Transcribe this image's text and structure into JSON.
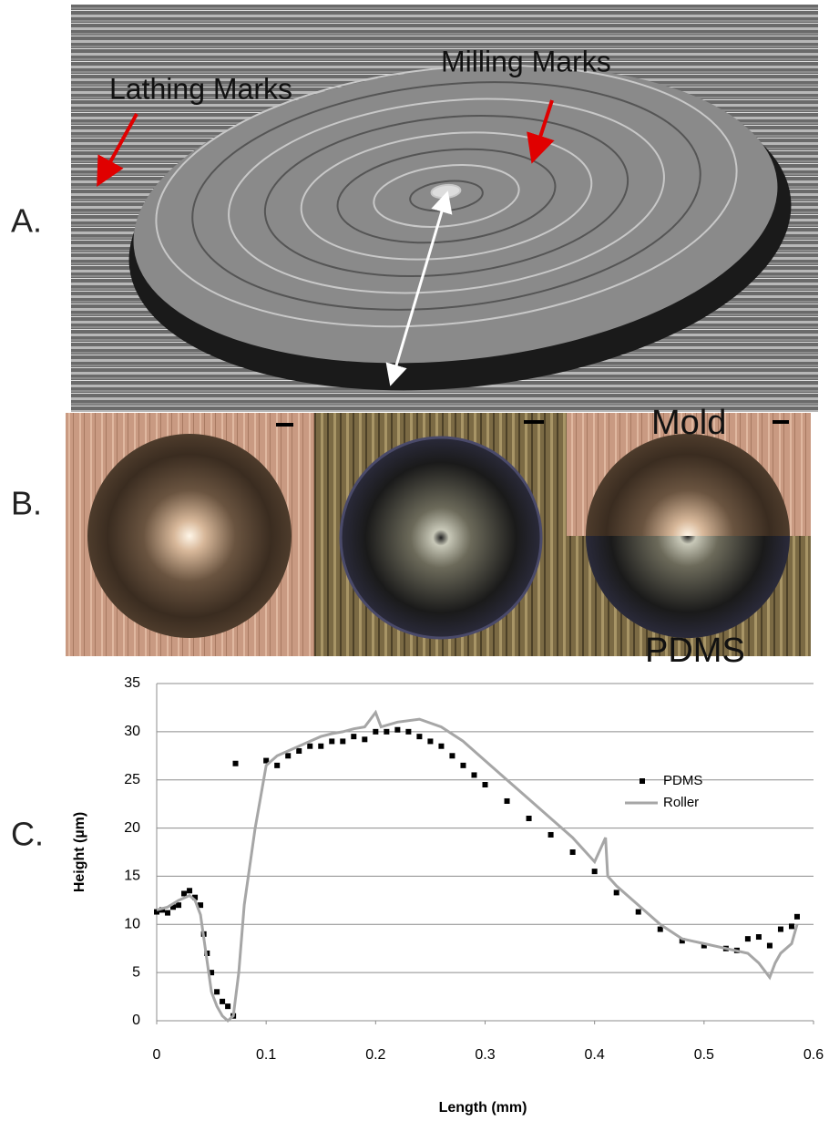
{
  "panels": {
    "a": {
      "label": "A.",
      "annotations": [
        "Lathing Marks",
        "Milling Marks"
      ]
    },
    "b": {
      "label": "B.",
      "annotations": [
        "Mold",
        "PDMS"
      ]
    },
    "c": {
      "label": "C."
    }
  },
  "chart_data": {
    "type": "line",
    "xlabel": "Length (mm)",
    "ylabel": "Height (µm)",
    "xlim": [
      0,
      0.6
    ],
    "xticks": [
      0,
      0.1,
      0.2,
      0.3,
      0.4,
      0.5,
      0.6
    ],
    "ylim": [
      0,
      35
    ],
    "yticks": [
      0,
      5,
      10,
      15,
      20,
      25,
      30,
      35
    ],
    "grid": true,
    "legend": "right",
    "series": [
      {
        "name": "PDMS",
        "type": "scatter",
        "marker": "square",
        "color": "#000000",
        "x": [
          0,
          0.005,
          0.01,
          0.015,
          0.02,
          0.025,
          0.03,
          0.035,
          0.04,
          0.043,
          0.046,
          0.05,
          0.055,
          0.06,
          0.065,
          0.07,
          0.072,
          0.1,
          0.11,
          0.12,
          0.13,
          0.14,
          0.15,
          0.16,
          0.17,
          0.18,
          0.19,
          0.2,
          0.21,
          0.22,
          0.23,
          0.24,
          0.25,
          0.26,
          0.27,
          0.28,
          0.29,
          0.3,
          0.32,
          0.34,
          0.36,
          0.38,
          0.4,
          0.42,
          0.44,
          0.46,
          0.48,
          0.5,
          0.52,
          0.53,
          0.54,
          0.55,
          0.56,
          0.57,
          0.58,
          0.585
        ],
        "values": [
          11.3,
          11.5,
          11.2,
          11.8,
          12,
          13.2,
          13.5,
          12.8,
          12,
          9,
          7,
          5,
          3,
          2,
          1.5,
          0.5,
          26.7,
          27,
          26.5,
          27.5,
          28,
          28.5,
          28.5,
          29,
          29,
          29.5,
          29.2,
          30,
          30,
          30.2,
          30,
          29.5,
          29,
          28.5,
          27.5,
          26.5,
          25.5,
          24.5,
          22.8,
          21,
          19.3,
          17.5,
          15.5,
          13.3,
          11.3,
          9.5,
          8.3,
          7.8,
          7.5,
          7.3,
          8.5,
          8.7,
          7.8,
          9.5,
          9.8,
          10.8
        ]
      },
      {
        "name": "Roller",
        "type": "line",
        "color": "#a6a6a6",
        "x": [
          0,
          0.01,
          0.02,
          0.03,
          0.035,
          0.04,
          0.045,
          0.05,
          0.055,
          0.06,
          0.065,
          0.07,
          0.075,
          0.08,
          0.09,
          0.1,
          0.11,
          0.12,
          0.13,
          0.14,
          0.15,
          0.16,
          0.17,
          0.18,
          0.19,
          0.2,
          0.205,
          0.22,
          0.24,
          0.26,
          0.28,
          0.3,
          0.32,
          0.34,
          0.36,
          0.38,
          0.4,
          0.41,
          0.412,
          0.42,
          0.44,
          0.46,
          0.48,
          0.5,
          0.52,
          0.54,
          0.55,
          0.56,
          0.565,
          0.57,
          0.58,
          0.585
        ],
        "values": [
          11.5,
          11.8,
          12.5,
          13,
          12.5,
          11,
          7,
          3,
          1.5,
          0.5,
          0,
          0.5,
          5,
          12,
          20,
          26.5,
          27.5,
          28,
          28.5,
          29,
          29.5,
          29.8,
          30,
          30.3,
          30.5,
          32,
          30.5,
          31,
          31.3,
          30.5,
          29,
          27,
          25,
          23,
          21,
          19,
          16.5,
          19,
          15,
          14,
          12,
          10,
          8.5,
          8,
          7.5,
          7,
          6,
          4.5,
          6,
          7,
          8,
          10
        ]
      }
    ]
  }
}
